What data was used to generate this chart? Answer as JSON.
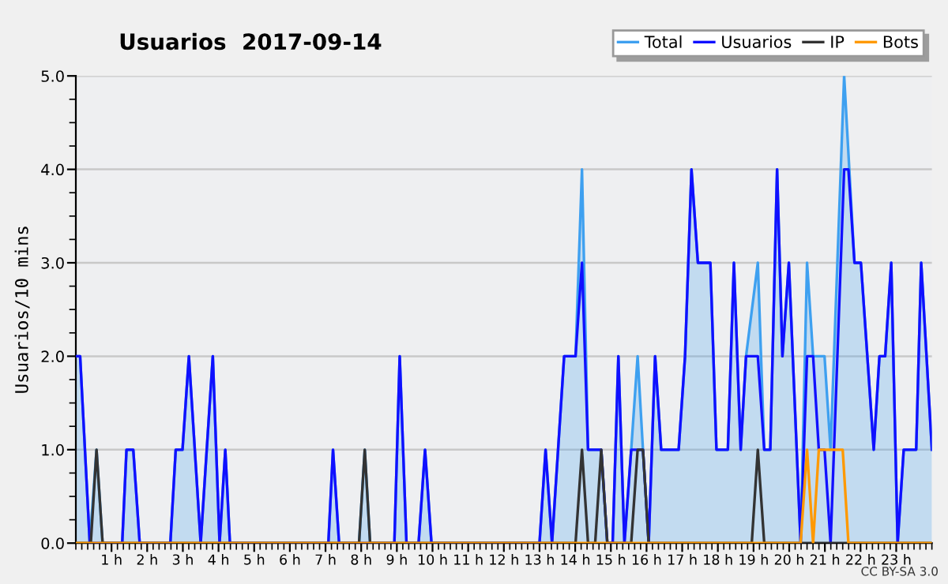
{
  "chart_data": {
    "type": "line",
    "title": "Usuarios  2017-09-14",
    "ylabel": "Usuarios/10 mins",
    "annotations": [
      "CC BY-SA 3.0"
    ],
    "xlim": [
      0,
      24
    ],
    "xticks": [
      {
        "value": 1,
        "label": "1 h"
      },
      {
        "value": 2,
        "label": "2 h"
      },
      {
        "value": 3,
        "label": "3 h"
      },
      {
        "value": 4,
        "label": "4 h"
      },
      {
        "value": 5,
        "label": "5 h"
      },
      {
        "value": 6,
        "label": "6 h"
      },
      {
        "value": 7,
        "label": "7 h"
      },
      {
        "value": 8,
        "label": "8 h"
      },
      {
        "value": 9,
        "label": "9 h"
      },
      {
        "value": 10,
        "label": "10 h"
      },
      {
        "value": 11,
        "label": "11 h"
      },
      {
        "value": 12,
        "label": "12 h"
      },
      {
        "value": 13,
        "label": "13 h"
      },
      {
        "value": 14,
        "label": "14 h"
      },
      {
        "value": 15,
        "label": "15 h"
      },
      {
        "value": 16,
        "label": "16 h"
      },
      {
        "value": 17,
        "label": "17 h"
      },
      {
        "value": 18,
        "label": "18 h"
      },
      {
        "value": 19,
        "label": "19 h"
      },
      {
        "value": 20,
        "label": "20 h"
      },
      {
        "value": 21,
        "label": "21 h"
      },
      {
        "value": 22,
        "label": "22 h"
      },
      {
        "value": 23,
        "label": "23 h"
      }
    ],
    "ylim": [
      0,
      5
    ],
    "yticks": [
      {
        "value": 0,
        "label": "0.0"
      },
      {
        "value": 1,
        "label": "1.0"
      },
      {
        "value": 2,
        "label": "2.0"
      },
      {
        "value": 3,
        "label": "3.0"
      },
      {
        "value": 4,
        "label": "4.0"
      },
      {
        "value": 5,
        "label": "5.0"
      }
    ],
    "grid": "y",
    "legend": "top right",
    "marker": "none",
    "line_style": "solid",
    "series": [
      {
        "name": "Total",
        "type": "area",
        "color": "#3ea0f0",
        "x": [
          0,
          0.12,
          0.39,
          0.58,
          0.75,
          1.3,
          1.42,
          1.61,
          1.79,
          2.65,
          2.8,
          2.99,
          3.17,
          3.5,
          3.84,
          4.03,
          4.19,
          4.32,
          7.08,
          7.21,
          7.38,
          7.94,
          8.1,
          8.25,
          8.93,
          9.08,
          9.27,
          9.61,
          9.79,
          9.97,
          13.0,
          13.17,
          13.35,
          13.69,
          14.01,
          14.19,
          14.36,
          14.73,
          14.9,
          15.05,
          15.21,
          15.38,
          15.57,
          15.75,
          15.9,
          16.06,
          16.24,
          16.41,
          16.9,
          17.08,
          17.26,
          17.44,
          17.79,
          17.96,
          18.28,
          18.45,
          18.64,
          18.79,
          19.12,
          19.3,
          19.47,
          19.66,
          19.81,
          19.99,
          20.32,
          20.5,
          20.67,
          20.83,
          20.99,
          21.16,
          21.54,
          21.83,
          22.01,
          22.37,
          22.53,
          22.69,
          22.86,
          23.04,
          23.21,
          23.56,
          23.7,
          24.0
        ],
        "values": [
          2,
          2,
          0,
          1,
          0,
          0,
          1,
          1,
          0,
          0,
          1,
          1,
          2,
          0,
          2,
          0,
          1,
          0,
          0,
          1,
          0,
          0,
          1,
          0,
          0,
          2,
          0,
          0,
          1,
          0,
          0,
          1,
          0,
          2,
          2,
          4,
          1,
          1,
          0,
          0,
          2,
          0,
          1,
          2,
          1,
          0,
          2,
          1,
          1,
          2,
          4,
          3,
          3,
          1,
          1,
          3,
          1,
          2,
          3,
          1,
          1,
          4,
          2,
          3,
          0,
          3,
          2,
          2,
          2,
          1,
          5,
          3,
          3,
          1,
          2,
          2,
          3,
          0,
          1,
          1,
          3,
          1
        ]
      },
      {
        "name": "Usuarios",
        "color": "#1010ff",
        "x": [
          0,
          0.12,
          0.39,
          1.3,
          1.42,
          1.61,
          1.79,
          2.65,
          2.8,
          2.99,
          3.17,
          3.5,
          3.84,
          4.03,
          4.19,
          4.32,
          7.08,
          7.21,
          7.38,
          8.93,
          9.08,
          9.27,
          9.61,
          9.79,
          9.97,
          13.0,
          13.17,
          13.35,
          13.69,
          14.01,
          14.19,
          14.36,
          14.73,
          14.9,
          15.05,
          15.21,
          15.38,
          15.57,
          15.9,
          16.06,
          16.24,
          16.41,
          16.9,
          17.08,
          17.26,
          17.44,
          17.79,
          17.96,
          18.28,
          18.45,
          18.64,
          18.79,
          19.12,
          19.3,
          19.47,
          19.66,
          19.81,
          19.99,
          20.32,
          20.5,
          20.67,
          20.83,
          20.99,
          21.16,
          21.54,
          21.66,
          21.83,
          22.01,
          22.37,
          22.53,
          22.69,
          22.86,
          23.04,
          23.21,
          23.56,
          23.7,
          24.0
        ],
        "values": [
          2,
          2,
          0,
          0,
          1,
          1,
          0,
          0,
          1,
          1,
          2,
          0,
          2,
          0,
          1,
          0,
          0,
          1,
          0,
          0,
          2,
          0,
          0,
          1,
          0,
          0,
          1,
          0,
          2,
          2,
          3,
          1,
          1,
          0,
          0,
          2,
          0,
          1,
          1,
          0,
          2,
          1,
          1,
          2,
          4,
          3,
          3,
          1,
          1,
          3,
          1,
          2,
          2,
          1,
          1,
          4,
          2,
          3,
          0,
          2,
          2,
          1,
          1,
          0,
          4,
          4,
          3,
          3,
          1,
          2,
          2,
          3,
          0,
          1,
          1,
          3,
          1
        ]
      },
      {
        "name": "IP",
        "color": "#333333",
        "x": [
          0,
          0.42,
          0.58,
          0.75,
          7.94,
          8.1,
          8.25,
          14.01,
          14.19,
          14.36,
          14.56,
          14.73,
          14.9,
          15.57,
          15.75,
          15.9,
          16.06,
          18.95,
          19.12,
          19.3,
          24
        ],
        "values": [
          0,
          0,
          1,
          0,
          0,
          1,
          0,
          0,
          1,
          0,
          0,
          1,
          0,
          0,
          1,
          1,
          0,
          0,
          1,
          0,
          0
        ]
      },
      {
        "name": "Bots",
        "color": "#ff9900",
        "x": [
          0,
          20.32,
          20.5,
          20.67,
          20.83,
          21.5,
          21.66,
          24
        ],
        "values": [
          0,
          0,
          1,
          0,
          1,
          1,
          0,
          0
        ]
      }
    ]
  }
}
